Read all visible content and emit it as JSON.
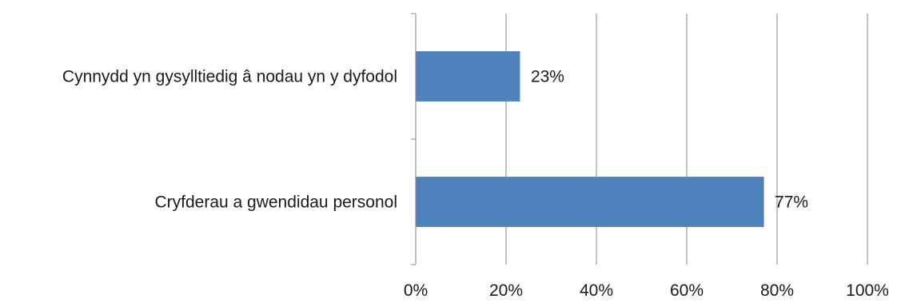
{
  "chart_data": {
    "type": "bar",
    "orientation": "horizontal",
    "title": "",
    "xlabel": "",
    "ylabel": "",
    "categories": [
      "Cynnydd yn gysylltiedig â nodau yn y dyfodol",
      "Cryfderau a gwendidau personol"
    ],
    "values": [
      23,
      77
    ],
    "data_labels": [
      "23%",
      "77%"
    ],
    "xlim": [
      0,
      100
    ],
    "x_ticks": [
      0,
      20,
      40,
      60,
      80,
      100
    ],
    "x_tick_labels": [
      "0%",
      "20%",
      "40%",
      "60%",
      "80%",
      "100%"
    ],
    "grid": "vertical",
    "legend": "none",
    "bar_color": "#4f81bd",
    "grid_color": "#868686"
  }
}
